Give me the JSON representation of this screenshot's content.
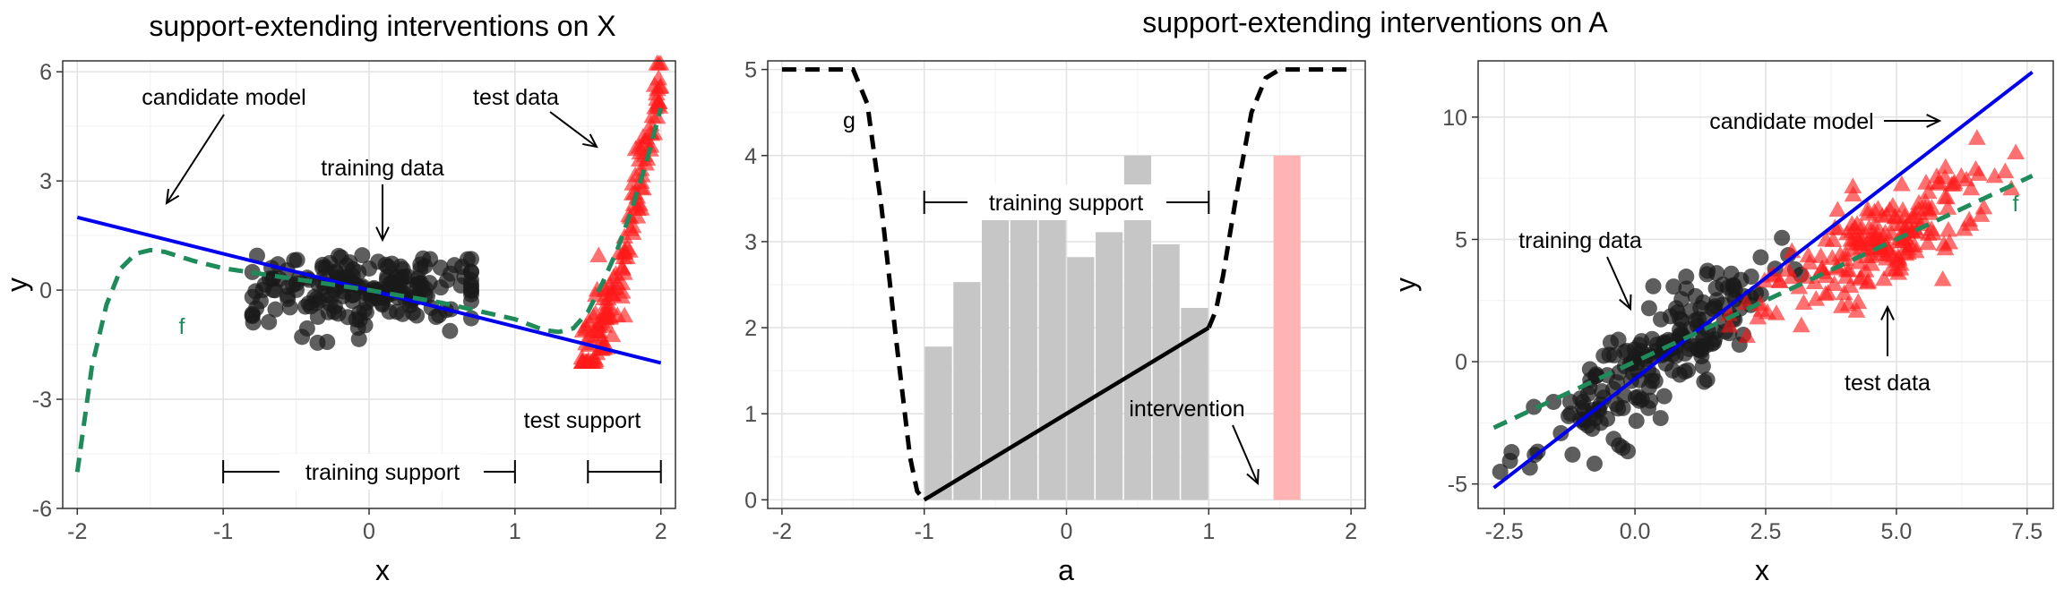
{
  "left": {
    "title": "support-extending interventions on X",
    "xlabel": "x",
    "ylabel": "y",
    "annotations": {
      "candidate_model": "candidate model",
      "test_data": "test data",
      "training_data": "training data",
      "f": "f",
      "test_support": "test support",
      "training_support": "training support"
    }
  },
  "middle": {
    "title": "support-extending interventions on A",
    "xlabel": "a",
    "annotations": {
      "g": "g",
      "training_support": "training support",
      "intervention": "intervention"
    }
  },
  "right": {
    "xlabel": "x",
    "ylabel": "y",
    "annotations": {
      "candidate_model": "candidate model",
      "training_data": "training data",
      "test_data": "test data",
      "f": "f"
    }
  },
  "colors": {
    "training_points": "#1a1a1a",
    "test_points": "#ff1a1a",
    "candidate_model": "#0000ee",
    "true_function": "#1f8a5a",
    "histogram": "#c6c6c6",
    "intervention_bar": "#ffb3b3",
    "grid_major": "#e3e3e3",
    "grid_minor": "#f2f2f2"
  },
  "chart_data": [
    {
      "type": "scatter",
      "panel": "left",
      "title": "support-extending interventions on X",
      "xlabel": "x",
      "ylabel": "y",
      "xlim": [
        -2.1,
        2.1
      ],
      "ylim": [
        -6,
        6.3
      ],
      "xticks": [
        -2,
        -1,
        0,
        1,
        2
      ],
      "yticks": [
        -6,
        -3,
        0,
        3,
        6
      ],
      "xtick_labels": [
        "-2",
        "-1",
        "0",
        "1",
        "2"
      ],
      "ytick_labels": [
        "-6",
        "-3",
        "0",
        "3",
        "6"
      ],
      "grid": true,
      "candidate_model": {
        "slope": -1,
        "intercept": 0,
        "x_range": [
          -2,
          2
        ]
      },
      "true_function_x": [
        -2.0,
        -1.9,
        -1.8,
        -1.7,
        -1.6,
        -1.5,
        -1.4,
        -1.2,
        -1.0,
        -0.5,
        0.0,
        0.5,
        1.0,
        1.2,
        1.3,
        1.4,
        1.5,
        1.6,
        1.7,
        1.8,
        1.9,
        2.0
      ],
      "true_function_y": [
        -5.0,
        -2.1,
        -0.4,
        0.6,
        1.0,
        1.1,
        1.05,
        0.8,
        0.6,
        0.3,
        0.0,
        -0.35,
        -0.8,
        -1.1,
        -1.15,
        -1.05,
        -0.6,
        0.2,
        1.1,
        2.2,
        3.5,
        5.0
      ],
      "training_support": [
        -1,
        1
      ],
      "test_support": [
        1.5,
        2
      ],
      "training_points": {
        "count": 200,
        "x_range": [
          -0.8,
          0.7
        ],
        "y_center": 0,
        "y_spread": 0.6
      },
      "test_points": {
        "count": 140,
        "x_range": [
          1.45,
          2.0
        ],
        "y_range": [
          -2.0,
          6.2
        ]
      }
    },
    {
      "type": "bar",
      "panel": "middle",
      "xlabel": "a",
      "ylabel": "",
      "xlim": [
        -2.1,
        2.1
      ],
      "ylim": [
        -0.1,
        5.1
      ],
      "xticks": [
        -2,
        -1,
        0,
        1,
        2
      ],
      "yticks": [
        0,
        1,
        2,
        3,
        4,
        5
      ],
      "xtick_labels": [
        "-2",
        "-1",
        "0",
        "1",
        "2"
      ],
      "ytick_labels": [
        "0",
        "1",
        "2",
        "3",
        "4",
        "5"
      ],
      "grid": true,
      "bins": [
        -0.9,
        -0.7,
        -0.5,
        -0.3,
        -0.1,
        0.1,
        0.3,
        0.5,
        0.7,
        0.9
      ],
      "values": [
        1.78,
        2.53,
        3.27,
        3.35,
        3.38,
        2.82,
        3.11,
        4.0,
        2.97,
        2.23
      ],
      "intervention_bar": {
        "center": 1.55,
        "value": 4.0
      },
      "g_x": [
        -2.0,
        -1.5,
        -1.4,
        -1.3,
        -1.2,
        -1.1,
        -1.05,
        -1.0,
        0.0,
        1.0,
        1.05,
        1.1,
        1.2,
        1.3,
        1.4,
        1.5,
        2.0
      ],
      "g_y": [
        5.0,
        5.0,
        4.6,
        3.4,
        1.9,
        0.5,
        0.1,
        0.0,
        1.0,
        2.0,
        2.2,
        2.6,
        3.6,
        4.5,
        4.9,
        5.0,
        5.0
      ],
      "training_support": [
        -1,
        1
      ]
    },
    {
      "type": "scatter",
      "panel": "right",
      "xlabel": "x",
      "ylabel": "y",
      "xlim": [
        -3.0,
        8.0
      ],
      "ylim": [
        -6.0,
        12.3
      ],
      "xticks": [
        -2.5,
        0.0,
        2.5,
        5.0,
        7.5
      ],
      "yticks": [
        -5,
        0,
        5,
        10
      ],
      "xtick_labels": [
        "-2.5",
        "0.0",
        "2.5",
        "5.0",
        "7.5"
      ],
      "ytick_labels": [
        "-5",
        "0",
        "5",
        "10"
      ],
      "grid": true,
      "candidate_model": {
        "slope": 1.65,
        "intercept": -0.7,
        "x_range": [
          -2.7,
          7.6
        ]
      },
      "true_function": {
        "slope": 1.0,
        "intercept": 0.0,
        "x_range": [
          -2.7,
          7.6
        ]
      },
      "training_points": {
        "count": 200,
        "x_range": [
          -2.6,
          3.3
        ],
        "slope": 1.45,
        "intercept": -0.5,
        "noise": 1.0
      },
      "test_points": {
        "count": 200,
        "x_range": [
          1.8,
          7.7
        ],
        "slope": 1.0,
        "intercept": 0.2,
        "noise": 1.0
      }
    }
  ]
}
